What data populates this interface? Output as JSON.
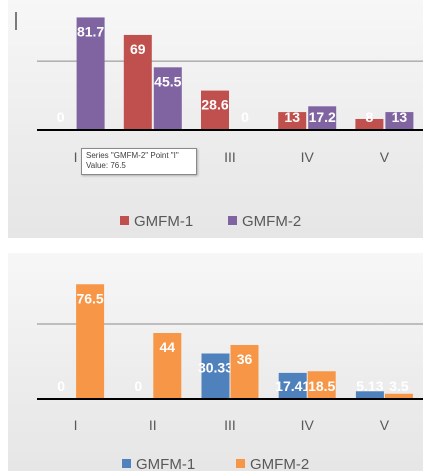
{
  "chart_data": [
    {
      "type": "bar",
      "categories": [
        "I",
        "II",
        "III",
        "IV",
        "V"
      ],
      "series": [
        {
          "name": "GMFM-1",
          "values": [
            0,
            69,
            28.6,
            13,
            8
          ],
          "labels": [
            "0",
            "69",
            "28.6",
            "13",
            "8"
          ],
          "color": "#c0504d"
        },
        {
          "name": "GMFM-2",
          "values": [
            81.7,
            45.5,
            0,
            17.2,
            13
          ],
          "labels": [
            "81.7",
            "45.5",
            "0",
            "17.2",
            "13"
          ],
          "color": "#8064a2"
        }
      ],
      "ylim": [
        0,
        90
      ],
      "gridlines": [
        50
      ],
      "grid": true,
      "legend": "bottom",
      "legend_entries": [
        "GMFM-1",
        "GMFM-2"
      ],
      "title": "",
      "xlabel": "",
      "ylabel": ""
    },
    {
      "type": "bar",
      "categories": [
        "I",
        "II",
        "III",
        "IV",
        "V"
      ],
      "series": [
        {
          "name": "GMFM-1",
          "values": [
            0,
            0,
            30.33,
            17.41,
            5.13
          ],
          "labels": [
            "0",
            "0",
            "30.33",
            "17.41",
            "5.13"
          ],
          "color": "#4f81bd"
        },
        {
          "name": "GMFM-2",
          "values": [
            76.5,
            44,
            36,
            18.5,
            3.5
          ],
          "labels": [
            "76.5",
            "44",
            "36",
            "18.5",
            "3.5"
          ],
          "color": "#f79646"
        }
      ],
      "ylim": [
        0,
        80
      ],
      "gridlines": [
        50
      ],
      "grid": true,
      "legend": "bottom",
      "legend_entries": [
        "GMFM-1",
        "GMFM-2"
      ],
      "title": "",
      "xlabel": "",
      "ylabel": ""
    }
  ],
  "tooltip": {
    "line1": "Series \"GMFM-2\" Point \"I\"",
    "line2": "Value: 76.5"
  }
}
